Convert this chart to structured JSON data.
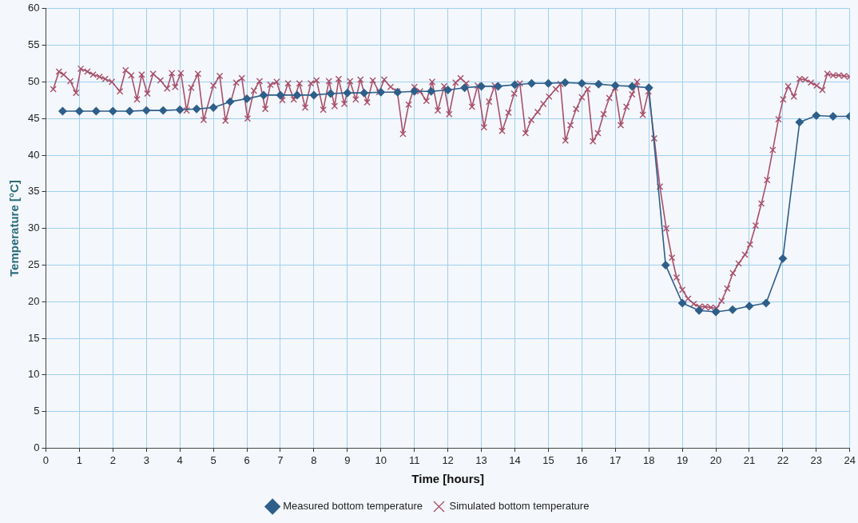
{
  "chart_data": {
    "type": "line",
    "xlabel": "Time [hours]",
    "ylabel": "Temperature [°C]",
    "xlim": [
      0,
      24
    ],
    "xticks": [
      0,
      1,
      2,
      3,
      4,
      5,
      6,
      7,
      8,
      9,
      10,
      11,
      12,
      13,
      14,
      15,
      16,
      17,
      18,
      19,
      20,
      21,
      22,
      23,
      24
    ],
    "ylim": [
      0,
      60
    ],
    "yticks": [
      0,
      5,
      10,
      15,
      20,
      25,
      30,
      35,
      40,
      45,
      50,
      55,
      60
    ],
    "grid": true,
    "legend": "bottom",
    "series": [
      {
        "name": "Measured bottom temperature",
        "color": "#2e5f8a",
        "marker": "diamond",
        "x": [
          0.5,
          1,
          1.5,
          2,
          2.5,
          3,
          3.5,
          4,
          4.5,
          5,
          5.5,
          6,
          6.5,
          7,
          7.5,
          8,
          8.5,
          9,
          9.5,
          10,
          10.5,
          11,
          11.5,
          12,
          12.5,
          13,
          13.5,
          14,
          14.5,
          15,
          15.5,
          16,
          16.5,
          17,
          17.5,
          18,
          18.5,
          19,
          19.5,
          20,
          20.5,
          21,
          21.5,
          22,
          22.5,
          23,
          23.5,
          24
        ],
        "values": [
          46,
          46,
          46,
          46,
          46,
          46.1,
          46.1,
          46.2,
          46.3,
          46.5,
          47.3,
          47.7,
          48.2,
          48.2,
          48.2,
          48.2,
          48.4,
          48.5,
          48.5,
          48.6,
          48.6,
          48.7,
          48.7,
          48.9,
          49.2,
          49.4,
          49.4,
          49.6,
          49.8,
          49.8,
          49.9,
          49.8,
          49.7,
          49.5,
          49.4,
          49.2,
          25,
          19.8,
          18.8,
          18.6,
          18.9,
          19.4,
          19.8,
          25.9,
          44.5,
          45.4,
          45.3,
          45.3
        ]
      },
      {
        "name": "Simulated bottom temperature",
        "color": "#a8506a",
        "marker": "cross",
        "x": [
          0.22,
          0.39,
          0.53,
          0.73,
          0.9,
          1.04,
          1.24,
          1.41,
          1.6,
          1.77,
          1.97,
          2.21,
          2.38,
          2.55,
          2.72,
          2.86,
          3.03,
          3.2,
          3.42,
          3.62,
          3.76,
          3.86,
          4.03,
          4.2,
          4.34,
          4.54,
          4.71,
          5,
          5.19,
          5.36,
          5.68,
          5.85,
          6.02,
          6.21,
          6.38,
          6.55,
          6.7,
          6.89,
          7.06,
          7.23,
          7.4,
          7.57,
          7.74,
          7.91,
          8.08,
          8.28,
          8.45,
          8.62,
          8.74,
          8.91,
          9.08,
          9.25,
          9.39,
          9.59,
          9.76,
          9.95,
          10.1,
          10.29,
          10.49,
          10.66,
          10.83,
          11,
          11.17,
          11.36,
          11.53,
          11.7,
          11.89,
          12.04,
          12.23,
          12.38,
          12.55,
          12.72,
          12.89,
          13.08,
          13.23,
          13.4,
          13.62,
          13.81,
          13.98,
          14.15,
          14.32,
          14.49,
          14.68,
          14.85,
          15.02,
          15.22,
          15.36,
          15.51,
          15.66,
          15.83,
          16,
          16.17,
          16.33,
          16.48,
          16.65,
          16.82,
          16.99,
          17.16,
          17.33,
          17.5,
          17.65,
          17.82,
          17.99,
          18.16,
          18.33,
          18.52,
          18.69,
          18.83,
          19,
          19.17,
          19.34,
          19.51,
          19.68,
          19.85,
          20.02,
          20.17,
          20.34,
          20.51,
          20.68,
          20.87,
          21.02,
          21.19,
          21.36,
          21.53,
          21.7,
          21.87,
          22.01,
          22.16,
          22.33,
          22.5,
          22.67,
          22.84,
          23.01,
          23.18,
          23.33,
          23.5,
          23.67,
          23.83,
          24
        ],
        "values": [
          49,
          51.4,
          51,
          50.1,
          48.5,
          51.8,
          51.4,
          51,
          50.7,
          50.4,
          50,
          48.7,
          51.6,
          50.9,
          47.6,
          51,
          48.4,
          51.1,
          50.2,
          49.1,
          51.2,
          49.3,
          51.2,
          46.1,
          49.2,
          51.1,
          44.8,
          49.5,
          50.8,
          44.7,
          49.9,
          50.5,
          45,
          48.8,
          50.1,
          46.3,
          49.6,
          50,
          47.5,
          49.8,
          47.6,
          49.8,
          46.5,
          49.8,
          50.2,
          46.2,
          50.1,
          46.7,
          50.4,
          47,
          50.1,
          47.6,
          50.3,
          47.2,
          50.2,
          48.6,
          50.3,
          49.3,
          48.7,
          42.9,
          46.9,
          49.3,
          48.7,
          47.4,
          50,
          46.1,
          49.4,
          45.6,
          49.9,
          50.5,
          49.8,
          46.6,
          49.5,
          43.8,
          47.3,
          49.5,
          43.3,
          45.8,
          48.4,
          49.8,
          43,
          44.8,
          45.9,
          47,
          48,
          49,
          49.7,
          42,
          44.1,
          46.3,
          47.9,
          49,
          41.9,
          43,
          45.6,
          47.8,
          49.2,
          44.1,
          46.6,
          48.3,
          50,
          45.5,
          48.7,
          42.3,
          35.7,
          30,
          26,
          23.3,
          21.6,
          20.4,
          19.7,
          19.3,
          19.3,
          19.2,
          19.1,
          20.1,
          21.8,
          23.9,
          25.2,
          26.4,
          27.8,
          30.4,
          33.4,
          36.6,
          40.7,
          44.9,
          47.6,
          49.4,
          48,
          50.4,
          50.3,
          49.9,
          49.5,
          48.9,
          51.1,
          50.9,
          50.9,
          50.8,
          50.7
        ]
      }
    ]
  }
}
